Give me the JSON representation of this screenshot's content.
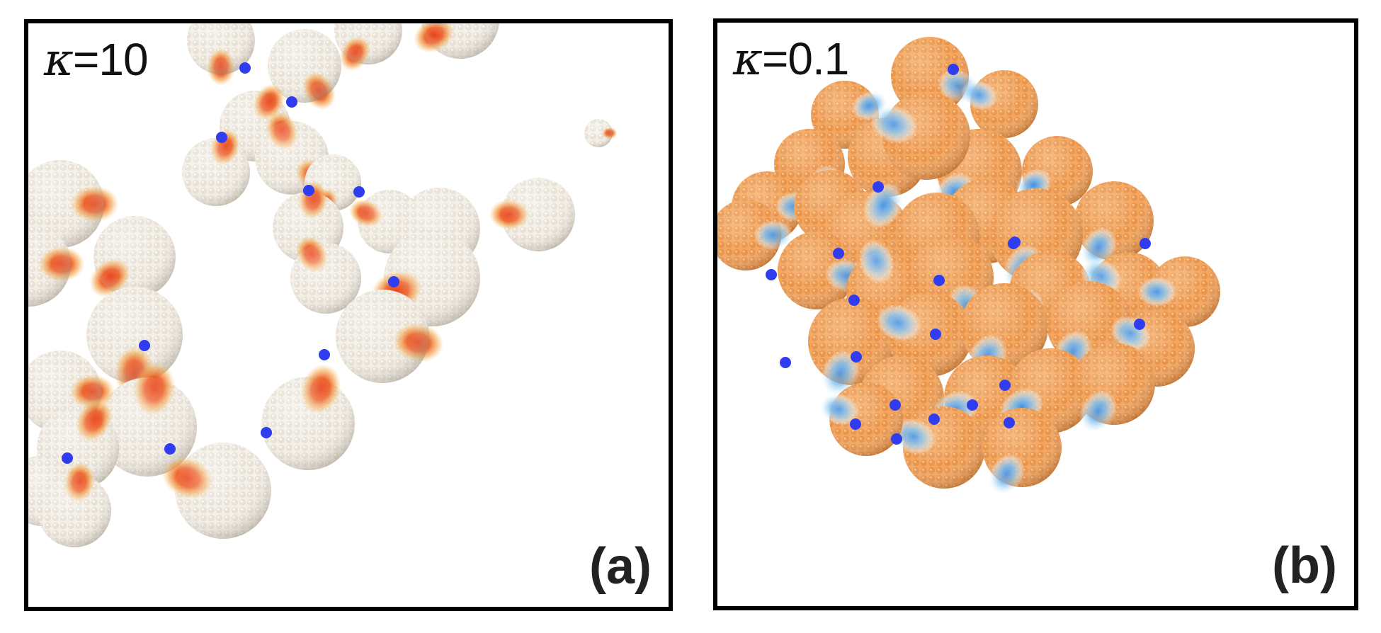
{
  "panels": [
    {
      "id": "a",
      "kappa_symbol": "κ",
      "kappa_value": "=10",
      "label": "(a)",
      "sphere_base_color": "#ece7dd",
      "patch_color": "#e8421a",
      "bond_color": "#2f3cf0"
    },
    {
      "id": "b",
      "kappa_symbol": "κ",
      "kappa_value": "=0.1",
      "label": "(b)",
      "sphere_base_color": "#f0a257",
      "patch_color": "#4aa2ee",
      "bond_color": "#2f3cf0"
    }
  ]
}
